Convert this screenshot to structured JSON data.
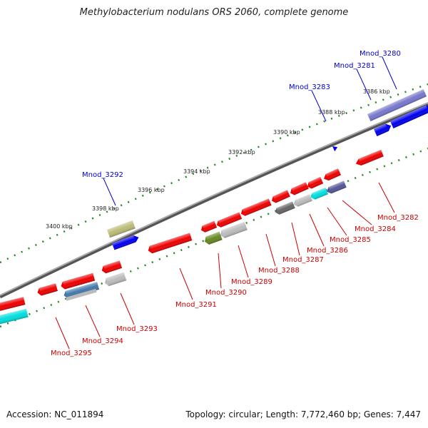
{
  "title": "Methylobacterium nodulans ORS 2060, complete genome",
  "accession": "Accession: NC_011894",
  "summary": "Topology: circular; Length: 7,772,460 bp; Genes: 7,447",
  "colors": {
    "forward_label": "#0000cc",
    "reverse_label": "#cc0000",
    "backbone": "#888888",
    "ticks": "#228822"
  },
  "ticks": [
    {
      "label": "3386 kbp"
    },
    {
      "label": "3388 kbp"
    },
    {
      "label": "3390 kbp"
    },
    {
      "label": "3392 kbp"
    },
    {
      "label": "3394 kbp"
    },
    {
      "label": "3396 kbp"
    },
    {
      "label": "3398 kbp"
    },
    {
      "label": "3400 kbp"
    }
  ],
  "forward_genes": [
    {
      "id": "Mnod_3280",
      "color": "#7777cc"
    },
    {
      "id": "Mnod_3281",
      "color": "#0000ee"
    },
    {
      "id": "Mnod_3283",
      "color": "#0000ee"
    },
    {
      "id": "Mnod_3292",
      "color": "#bbbb77"
    }
  ],
  "reverse_genes": [
    {
      "id": "Mnod_3282",
      "color": "#ee0000"
    },
    {
      "id": "Mnod_3284",
      "color": "#ee0000"
    },
    {
      "id": "Mnod_3285",
      "color": "#555599"
    },
    {
      "id": "Mnod_3286",
      "color": "#00dddd"
    },
    {
      "id": "Mnod_3287",
      "color": "#bbbbbb"
    },
    {
      "id": "Mnod_3288",
      "color": "#666666"
    },
    {
      "id": "Mnod_3289",
      "color": "#bbbbbb"
    },
    {
      "id": "Mnod_3290",
      "color": "#668822"
    },
    {
      "id": "Mnod_3291",
      "color": "#ee0000"
    },
    {
      "id": "Mnod_3293",
      "color": "#bbbbbb"
    },
    {
      "id": "Mnod_3294",
      "color": "#4477aa"
    },
    {
      "id": "Mnod_3295",
      "color": "#ee0000"
    }
  ]
}
